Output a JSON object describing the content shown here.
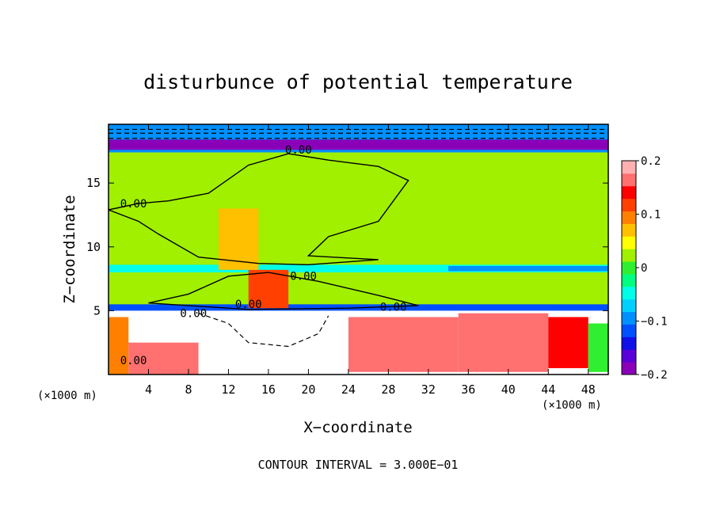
{
  "chart_data": {
    "type": "heatmap",
    "title": "disturbunce of potential temperature",
    "xlabel": "X−coordinate",
    "ylabel": "Z−coordinate",
    "x_unit": "(×1000 m)",
    "x_unit_right": "(×1000 m)",
    "xlim": [
      0,
      50
    ],
    "ylim": [
      0,
      19.6
    ],
    "x_ticks": [
      4,
      8,
      12,
      16,
      20,
      24,
      28,
      32,
      36,
      40,
      44,
      48
    ],
    "y_ticks": [
      5,
      10,
      15
    ],
    "contour_interval_text": "CONTOUR INTERVAL = 3.000E−01",
    "contour_labels": [
      {
        "text": "0.00",
        "x": 2.5,
        "z": 13.1
      },
      {
        "text": "0.00",
        "x": 19.0,
        "z": 17.3
      },
      {
        "text": "0.00",
        "x": 19.5,
        "z": 7.4
      },
      {
        "text": "0.00",
        "x": 14.0,
        "z": 5.2
      },
      {
        "text": "0.00",
        "x": 28.5,
        "z": 5.0
      },
      {
        "text": "0.00",
        "x": 8.5,
        "z": 4.5
      },
      {
        "text": "0.00",
        "x": 2.5,
        "z": 0.8
      }
    ],
    "colorbar": {
      "range": [
        -0.2,
        0.2
      ],
      "tick_labels": [
        {
          "label": "0.2",
          "value": 0.2
        },
        {
          "label": "0.1",
          "value": 0.1
        },
        {
          "label": "0",
          "value": 0.0
        },
        {
          "label": "−0.1",
          "value": -0.1
        },
        {
          "label": "−0.2",
          "value": -0.2
        }
      ],
      "colors": [
        "#8a00b8",
        "#5a00d8",
        "#1010e8",
        "#0050ff",
        "#0090ff",
        "#00d0ff",
        "#00ffe8",
        "#00ff80",
        "#30ef30",
        "#a0f000",
        "#ffff00",
        "#ffc000",
        "#ff8000",
        "#ff4000",
        "#ff0000",
        "#ff7070",
        "#ffb0b0"
      ]
    },
    "regions": [
      {
        "x": [
          0,
          50
        ],
        "z": [
          5.2,
          17.5
        ],
        "value": 0.03
      },
      {
        "x": [
          0,
          50
        ],
        "z": [
          8.0,
          8.6
        ],
        "value": -0.05
      },
      {
        "x": [
          34,
          50
        ],
        "z": [
          8.1,
          8.5
        ],
        "value": -0.09
      },
      {
        "x": [
          0,
          50
        ],
        "z": [
          5.0,
          5.5
        ],
        "value": -0.11
      },
      {
        "x": [
          0,
          50
        ],
        "z": [
          17.4,
          19.6
        ],
        "value": -0.1
      },
      {
        "x": [
          0,
          50
        ],
        "z": [
          17.6,
          18.4
        ],
        "value": -0.2
      },
      {
        "x": [
          14,
          18
        ],
        "z": [
          5.2,
          8.2
        ],
        "value": 0.12
      },
      {
        "x": [
          11,
          15
        ],
        "z": [
          8.2,
          13.0
        ],
        "value": 0.08
      },
      {
        "x": [
          0,
          2
        ],
        "z": [
          0,
          4.5
        ],
        "value": 0.1
      },
      {
        "x": [
          2,
          9
        ],
        "z": [
          0,
          2.5
        ],
        "value": 0.16
      },
      {
        "x": [
          24,
          35
        ],
        "z": [
          0.2,
          4.5
        ],
        "value": 0.17
      },
      {
        "x": [
          35,
          44
        ],
        "z": [
          0.2,
          4.8
        ],
        "value": 0.16
      },
      {
        "x": [
          44,
          48
        ],
        "z": [
          0.5,
          4.5
        ],
        "value": 0.13
      },
      {
        "x": [
          48,
          50
        ],
        "z": [
          0.2,
          4.0
        ],
        "value": 0.0
      }
    ]
  }
}
